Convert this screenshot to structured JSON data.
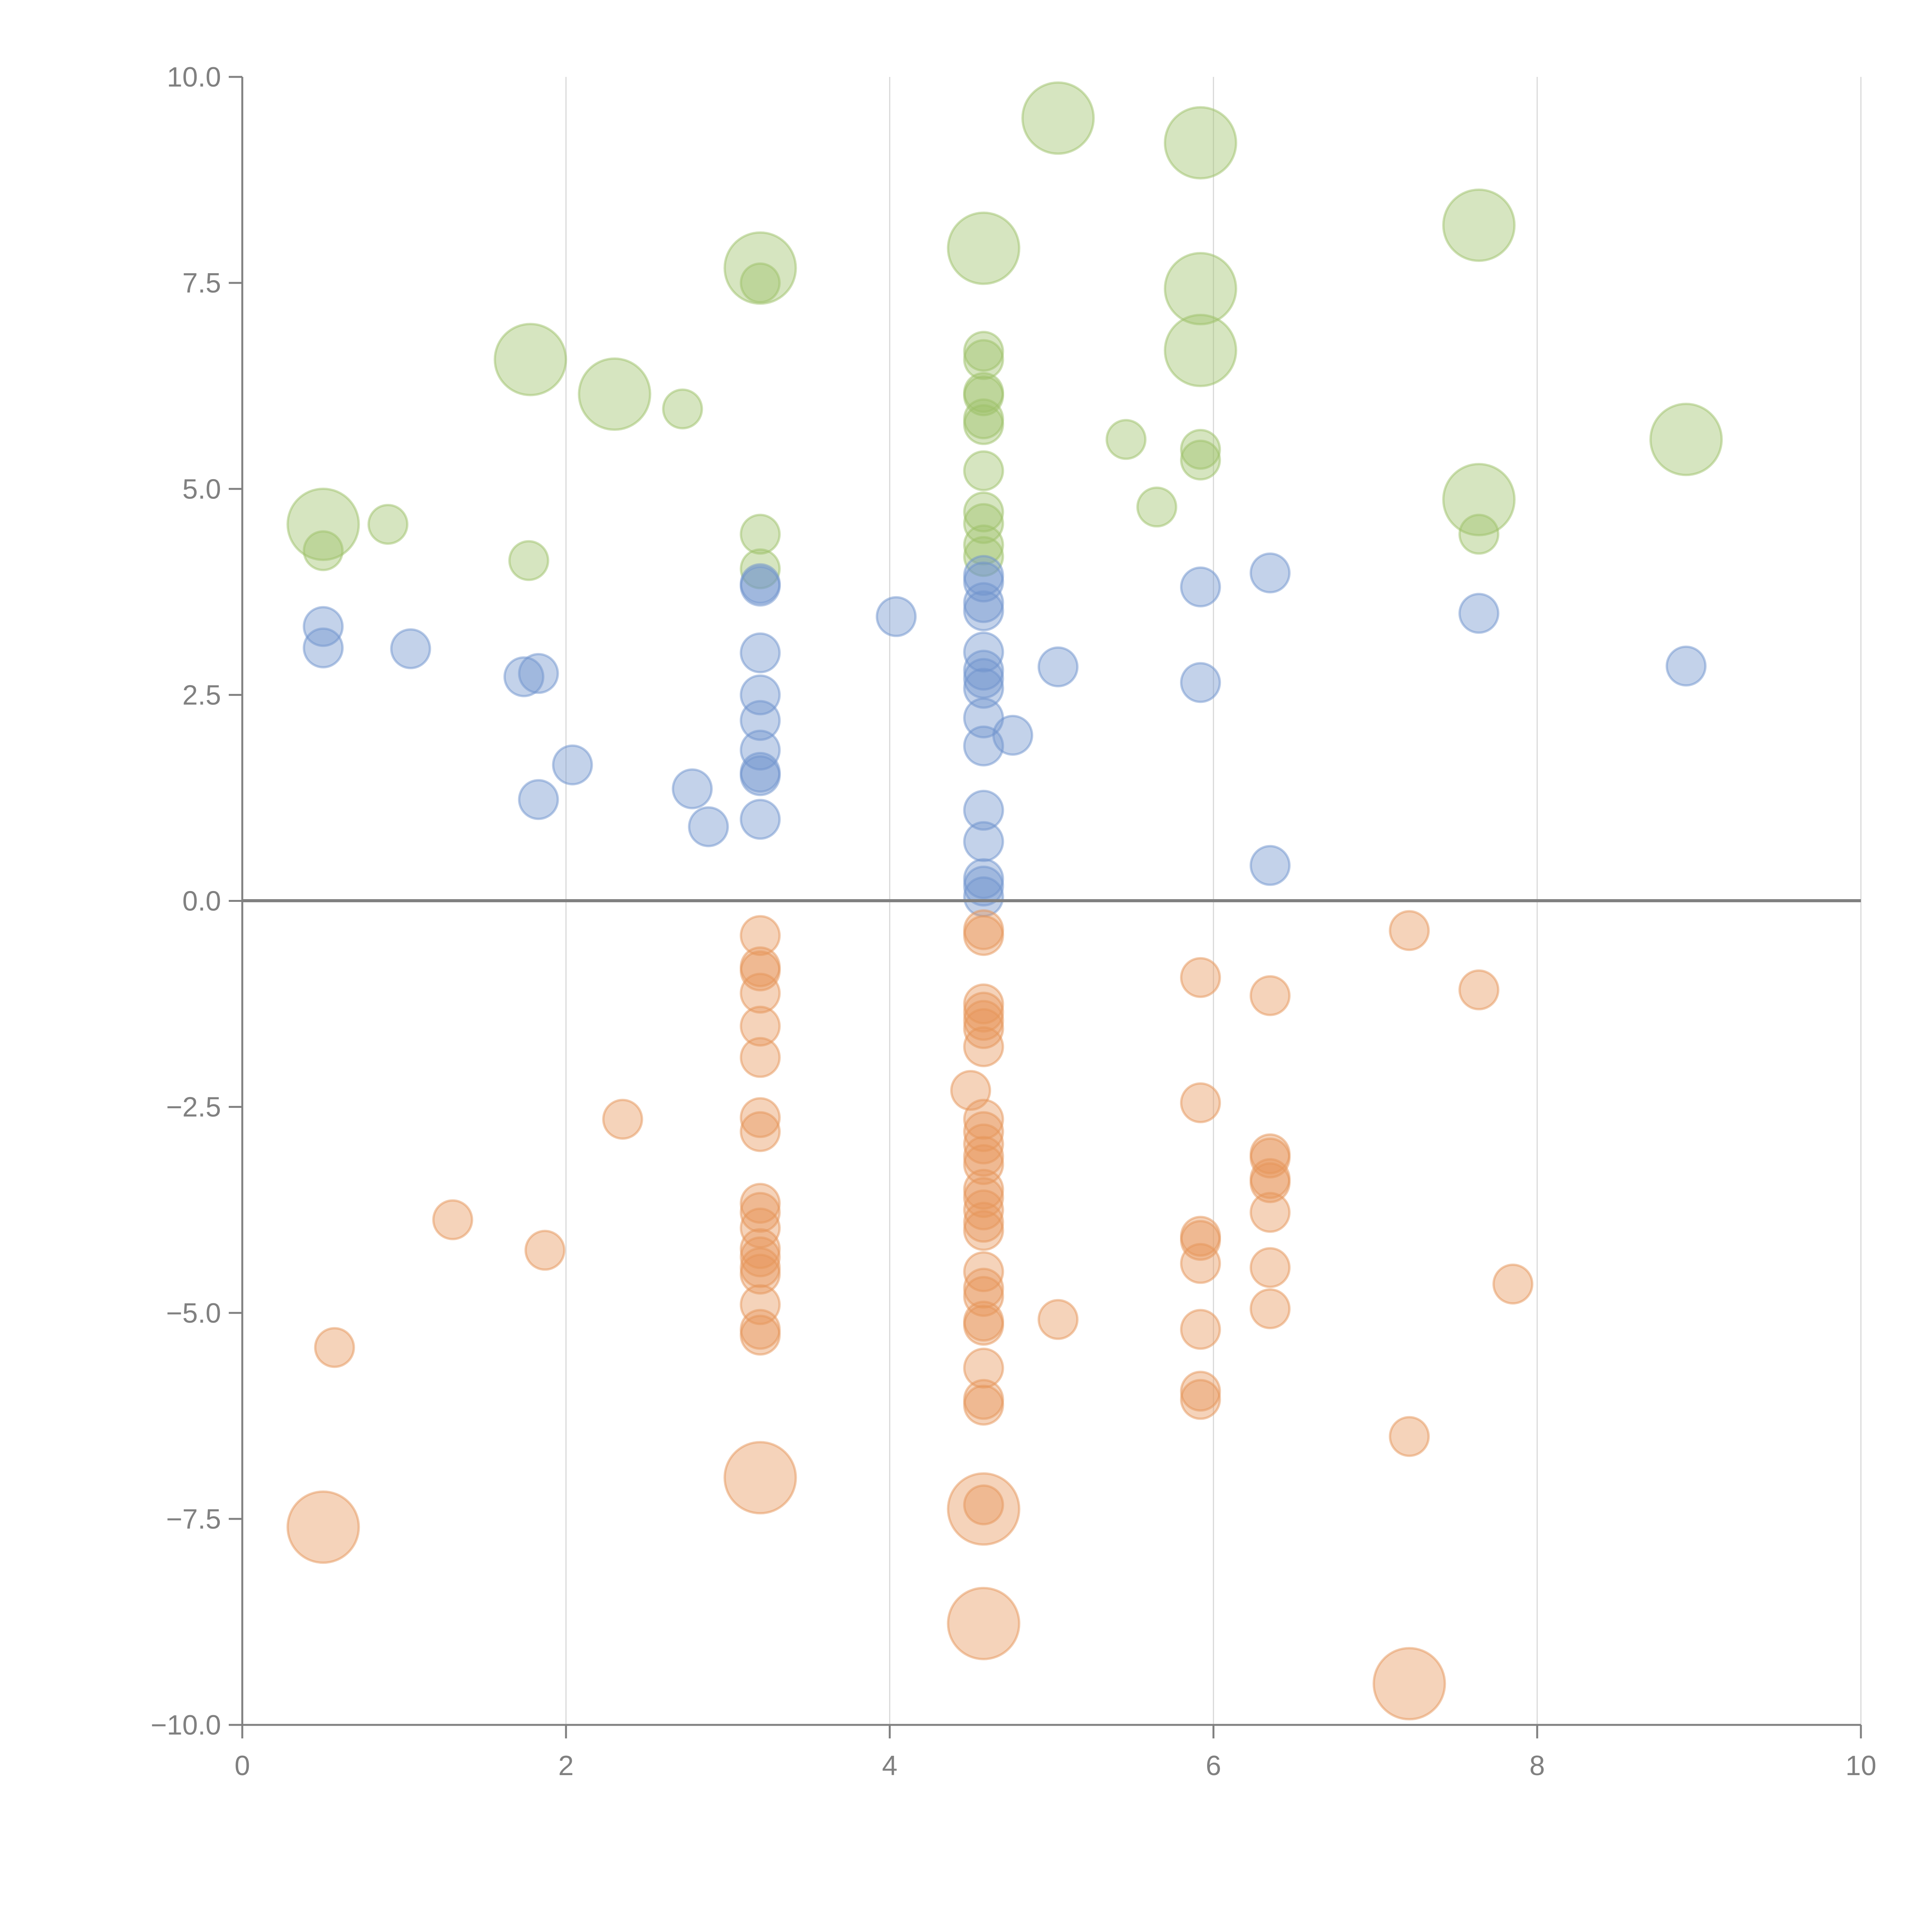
{
  "chart_data": {
    "type": "scatter",
    "title": "",
    "xlabel": "",
    "ylabel": "",
    "xlim": [
      0,
      10
    ],
    "ylim": [
      -10,
      10
    ],
    "x_ticks": [
      "0",
      "2",
      "4",
      "6",
      "8",
      "10"
    ],
    "y_ticks": [
      "10.0",
      "7.5",
      "5.0",
      "2.5",
      "0.0",
      "-2.5",
      "-5.0",
      "-7.5",
      "-10.0"
    ],
    "grid": "vertical",
    "zero_line": true,
    "series": [
      {
        "name": "green",
        "color": "#9dc26a",
        "points": [
          {
            "x": 0.5,
            "y": 4.57,
            "size": "large"
          },
          {
            "x": 0.5,
            "y": 4.25,
            "size": "small"
          },
          {
            "x": 0.9,
            "y": 4.57,
            "size": "small"
          },
          {
            "x": 1.77,
            "y": 4.13,
            "size": "small"
          },
          {
            "x": 1.78,
            "y": 6.57,
            "size": "large"
          },
          {
            "x": 2.3,
            "y": 6.15,
            "size": "large"
          },
          {
            "x": 2.72,
            "y": 5.97,
            "size": "small"
          },
          {
            "x": 3.2,
            "y": 7.68,
            "size": "large"
          },
          {
            "x": 3.2,
            "y": 7.5,
            "size": "small"
          },
          {
            "x": 3.2,
            "y": 4.45,
            "size": "small"
          },
          {
            "x": 3.2,
            "y": 4.03,
            "size": "small"
          },
          {
            "x": 4.58,
            "y": 7.92,
            "size": "large"
          },
          {
            "x": 4.58,
            "y": 6.67,
            "size": "small"
          },
          {
            "x": 4.58,
            "y": 6.57,
            "size": "small"
          },
          {
            "x": 4.58,
            "y": 6.17,
            "size": "small"
          },
          {
            "x": 4.58,
            "y": 6.13,
            "size": "small"
          },
          {
            "x": 4.58,
            "y": 5.85,
            "size": "small"
          },
          {
            "x": 4.58,
            "y": 5.78,
            "size": "small"
          },
          {
            "x": 4.58,
            "y": 5.22,
            "size": "small"
          },
          {
            "x": 4.58,
            "y": 4.72,
            "size": "small"
          },
          {
            "x": 4.58,
            "y": 4.58,
            "size": "small"
          },
          {
            "x": 4.58,
            "y": 4.32,
            "size": "small"
          },
          {
            "x": 4.58,
            "y": 4.18,
            "size": "small"
          },
          {
            "x": 5.04,
            "y": 9.5,
            "size": "large"
          },
          {
            "x": 5.46,
            "y": 5.6,
            "size": "small"
          },
          {
            "x": 5.65,
            "y": 4.78,
            "size": "small"
          },
          {
            "x": 5.92,
            "y": 9.2,
            "size": "large"
          },
          {
            "x": 5.92,
            "y": 7.43,
            "size": "large"
          },
          {
            "x": 5.92,
            "y": 6.68,
            "size": "large"
          },
          {
            "x": 5.92,
            "y": 5.48,
            "size": "small"
          },
          {
            "x": 5.92,
            "y": 5.35,
            "size": "small"
          },
          {
            "x": 7.64,
            "y": 8.2,
            "size": "large"
          },
          {
            "x": 7.64,
            "y": 4.87,
            "size": "large"
          },
          {
            "x": 7.64,
            "y": 4.45,
            "size": "small"
          },
          {
            "x": 8.92,
            "y": 5.6,
            "size": "large"
          }
        ]
      },
      {
        "name": "blue",
        "color": "#6f94cd",
        "points": [
          {
            "x": 0.5,
            "y": 3.33,
            "size": "small"
          },
          {
            "x": 0.5,
            "y": 3.07,
            "size": "small"
          },
          {
            "x": 1.04,
            "y": 3.06,
            "size": "small"
          },
          {
            "x": 1.74,
            "y": 2.72,
            "size": "small"
          },
          {
            "x": 1.83,
            "y": 2.76,
            "size": "small"
          },
          {
            "x": 1.83,
            "y": 1.23,
            "size": "small"
          },
          {
            "x": 2.04,
            "y": 1.65,
            "size": "small"
          },
          {
            "x": 2.78,
            "y": 1.36,
            "size": "small"
          },
          {
            "x": 2.88,
            "y": 0.9,
            "size": "small"
          },
          {
            "x": 3.2,
            "y": 3.85,
            "size": "small"
          },
          {
            "x": 3.2,
            "y": 3.82,
            "size": "small"
          },
          {
            "x": 3.2,
            "y": 3.01,
            "size": "small"
          },
          {
            "x": 3.2,
            "y": 2.5,
            "size": "small"
          },
          {
            "x": 3.2,
            "y": 2.19,
            "size": "small"
          },
          {
            "x": 3.2,
            "y": 1.83,
            "size": "small"
          },
          {
            "x": 3.2,
            "y": 1.56,
            "size": "small"
          },
          {
            "x": 3.2,
            "y": 1.52,
            "size": "small"
          },
          {
            "x": 3.2,
            "y": 0.99,
            "size": "small"
          },
          {
            "x": 4.04,
            "y": 3.45,
            "size": "small"
          },
          {
            "x": 4.58,
            "y": 3.95,
            "size": "small"
          },
          {
            "x": 4.58,
            "y": 3.87,
            "size": "small"
          },
          {
            "x": 4.58,
            "y": 3.62,
            "size": "small"
          },
          {
            "x": 4.58,
            "y": 3.52,
            "size": "small"
          },
          {
            "x": 4.58,
            "y": 3.02,
            "size": "small"
          },
          {
            "x": 4.58,
            "y": 2.8,
            "size": "small"
          },
          {
            "x": 4.58,
            "y": 2.7,
            "size": "small"
          },
          {
            "x": 4.58,
            "y": 2.58,
            "size": "small"
          },
          {
            "x": 4.58,
            "y": 2.22,
            "size": "small"
          },
          {
            "x": 4.58,
            "y": 1.88,
            "size": "small"
          },
          {
            "x": 4.58,
            "y": 1.1,
            "size": "small"
          },
          {
            "x": 4.58,
            "y": 0.72,
            "size": "small"
          },
          {
            "x": 4.58,
            "y": 0.27,
            "size": "small"
          },
          {
            "x": 4.58,
            "y": 0.18,
            "size": "small"
          },
          {
            "x": 4.58,
            "y": 0.05,
            "size": "small"
          },
          {
            "x": 4.76,
            "y": 2.01,
            "size": "small"
          },
          {
            "x": 5.04,
            "y": 2.84,
            "size": "small"
          },
          {
            "x": 5.92,
            "y": 3.81,
            "size": "small"
          },
          {
            "x": 5.92,
            "y": 2.65,
            "size": "small"
          },
          {
            "x": 6.35,
            "y": 3.98,
            "size": "small"
          },
          {
            "x": 6.35,
            "y": 0.43,
            "size": "small"
          },
          {
            "x": 7.64,
            "y": 3.49,
            "size": "small"
          },
          {
            "x": 8.92,
            "y": 2.85,
            "size": "small"
          }
        ]
      },
      {
        "name": "orange",
        "color": "#e6955a",
        "points": [
          {
            "x": 0.5,
            "y": -7.6,
            "size": "large"
          },
          {
            "x": 0.57,
            "y": -5.42,
            "size": "small"
          },
          {
            "x": 1.3,
            "y": -3.87,
            "size": "small"
          },
          {
            "x": 1.87,
            "y": -4.24,
            "size": "small"
          },
          {
            "x": 2.35,
            "y": -2.65,
            "size": "small"
          },
          {
            "x": 3.2,
            "y": -0.42,
            "size": "small"
          },
          {
            "x": 3.2,
            "y": -0.8,
            "size": "small"
          },
          {
            "x": 3.2,
            "y": -0.85,
            "size": "small"
          },
          {
            "x": 3.2,
            "y": -1.12,
            "size": "small"
          },
          {
            "x": 3.2,
            "y": -1.52,
            "size": "small"
          },
          {
            "x": 3.2,
            "y": -1.9,
            "size": "small"
          },
          {
            "x": 3.2,
            "y": -2.63,
            "size": "small"
          },
          {
            "x": 3.2,
            "y": -2.8,
            "size": "small"
          },
          {
            "x": 3.2,
            "y": -3.67,
            "size": "small"
          },
          {
            "x": 3.2,
            "y": -3.78,
            "size": "small"
          },
          {
            "x": 3.2,
            "y": -3.97,
            "size": "small"
          },
          {
            "x": 3.2,
            "y": -4.22,
            "size": "small"
          },
          {
            "x": 3.2,
            "y": -4.32,
            "size": "small"
          },
          {
            "x": 3.2,
            "y": -4.45,
            "size": "small"
          },
          {
            "x": 3.2,
            "y": -4.53,
            "size": "small"
          },
          {
            "x": 3.2,
            "y": -4.9,
            "size": "small"
          },
          {
            "x": 3.2,
            "y": -5.2,
            "size": "small"
          },
          {
            "x": 3.2,
            "y": -5.27,
            "size": "small"
          },
          {
            "x": 3.2,
            "y": -7.0,
            "size": "large"
          },
          {
            "x": 4.5,
            "y": -2.3,
            "size": "small"
          },
          {
            "x": 4.58,
            "y": -0.35,
            "size": "small"
          },
          {
            "x": 4.58,
            "y": -0.42,
            "size": "small"
          },
          {
            "x": 4.58,
            "y": -1.25,
            "size": "small"
          },
          {
            "x": 4.58,
            "y": -1.35,
            "size": "small"
          },
          {
            "x": 4.58,
            "y": -1.45,
            "size": "small"
          },
          {
            "x": 4.58,
            "y": -1.55,
            "size": "small"
          },
          {
            "x": 4.58,
            "y": -1.77,
            "size": "small"
          },
          {
            "x": 4.58,
            "y": -2.65,
            "size": "small"
          },
          {
            "x": 4.58,
            "y": -2.8,
            "size": "small"
          },
          {
            "x": 4.58,
            "y": -2.95,
            "size": "small"
          },
          {
            "x": 4.58,
            "y": -3.1,
            "size": "small"
          },
          {
            "x": 4.58,
            "y": -3.2,
            "size": "small"
          },
          {
            "x": 4.58,
            "y": -3.5,
            "size": "small"
          },
          {
            "x": 4.58,
            "y": -3.6,
            "size": "small"
          },
          {
            "x": 4.58,
            "y": -3.75,
            "size": "small"
          },
          {
            "x": 4.58,
            "y": -3.9,
            "size": "small"
          },
          {
            "x": 4.58,
            "y": -4.0,
            "size": "small"
          },
          {
            "x": 4.58,
            "y": -4.5,
            "size": "small"
          },
          {
            "x": 4.58,
            "y": -4.7,
            "size": "small"
          },
          {
            "x": 4.58,
            "y": -4.8,
            "size": "small"
          },
          {
            "x": 4.58,
            "y": -5.1,
            "size": "small"
          },
          {
            "x": 4.58,
            "y": -5.15,
            "size": "small"
          },
          {
            "x": 4.58,
            "y": -5.67,
            "size": "small"
          },
          {
            "x": 4.58,
            "y": -6.05,
            "size": "small"
          },
          {
            "x": 4.58,
            "y": -6.12,
            "size": "small"
          },
          {
            "x": 4.58,
            "y": -7.33,
            "size": "small"
          },
          {
            "x": 4.58,
            "y": -7.38,
            "size": "large"
          },
          {
            "x": 4.58,
            "y": -8.77,
            "size": "large"
          },
          {
            "x": 5.04,
            "y": -5.08,
            "size": "small"
          },
          {
            "x": 5.92,
            "y": -0.93,
            "size": "small"
          },
          {
            "x": 5.92,
            "y": -2.45,
            "size": "small"
          },
          {
            "x": 5.92,
            "y": -4.07,
            "size": "small"
          },
          {
            "x": 5.92,
            "y": -4.12,
            "size": "small"
          },
          {
            "x": 5.92,
            "y": -4.4,
            "size": "small"
          },
          {
            "x": 5.92,
            "y": -5.2,
            "size": "small"
          },
          {
            "x": 5.92,
            "y": -5.95,
            "size": "small"
          },
          {
            "x": 5.92,
            "y": -6.05,
            "size": "small"
          },
          {
            "x": 6.35,
            "y": -1.15,
            "size": "small"
          },
          {
            "x": 6.35,
            "y": -3.07,
            "size": "small"
          },
          {
            "x": 6.35,
            "y": -3.12,
            "size": "small"
          },
          {
            "x": 6.35,
            "y": -3.37,
            "size": "small"
          },
          {
            "x": 6.35,
            "y": -3.42,
            "size": "small"
          },
          {
            "x": 6.35,
            "y": -3.78,
            "size": "small"
          },
          {
            "x": 6.35,
            "y": -4.45,
            "size": "small"
          },
          {
            "x": 6.35,
            "y": -4.95,
            "size": "small"
          },
          {
            "x": 7.21,
            "y": -0.36,
            "size": "small"
          },
          {
            "x": 7.21,
            "y": -6.5,
            "size": "small"
          },
          {
            "x": 7.21,
            "y": -9.5,
            "size": "large"
          },
          {
            "x": 7.64,
            "y": -1.08,
            "size": "small"
          },
          {
            "x": 7.85,
            "y": -4.65,
            "size": "small"
          }
        ]
      }
    ]
  }
}
